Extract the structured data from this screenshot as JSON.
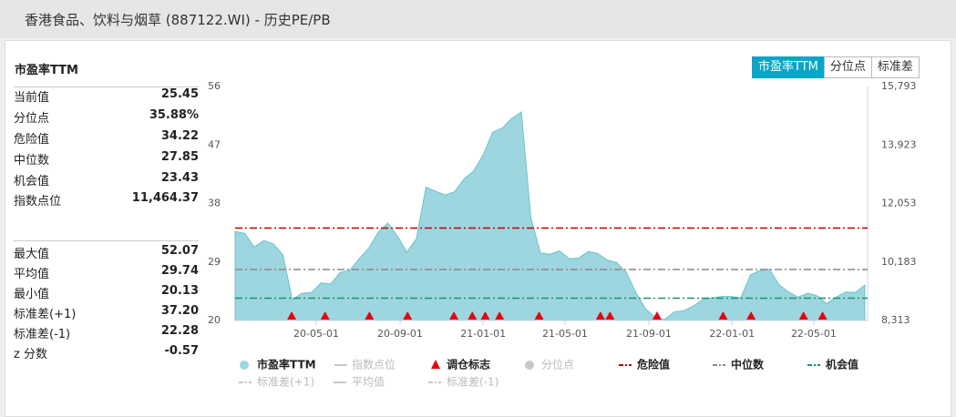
{
  "header": {
    "title": "香港食品、饮料与烟草 (887122.WI) - 历史PE/PB"
  },
  "panel": {
    "title": "市盈率TTM",
    "tabs": [
      "市盈率TTM",
      "分位点",
      "标准差"
    ],
    "active_tab": 0
  },
  "stats": {
    "groups": [
      [
        [
          "当前值",
          "25.45"
        ],
        [
          "分位点",
          "35.88%"
        ],
        [
          "危险值",
          "34.22"
        ],
        [
          "中位数",
          "27.85"
        ],
        [
          "机会值",
          "23.43"
        ],
        [
          "指数点位",
          "11,464.37"
        ]
      ],
      [
        [
          "最大值",
          "52.07"
        ],
        [
          "平均值",
          "29.74"
        ],
        [
          "最小值",
          "20.13"
        ],
        [
          "标准差(+1)",
          "37.20"
        ],
        [
          "标准差(-1)",
          "22.28"
        ],
        [
          "z 分数",
          "-0.57"
        ]
      ]
    ]
  },
  "chart_data": {
    "type": "area",
    "x": [
      "20-01-03",
      "20-01-17",
      "20-01-31",
      "20-02-14",
      "20-02-28",
      "20-03-13",
      "20-03-27",
      "20-04-10",
      "20-04-24",
      "20-05-08",
      "20-05-22",
      "20-06-05",
      "20-06-19",
      "20-07-03",
      "20-07-17",
      "20-07-31",
      "20-08-14",
      "20-08-28",
      "20-09-11",
      "20-09-25",
      "20-10-09",
      "20-10-23",
      "20-11-06",
      "20-11-20",
      "20-12-04",
      "20-12-18",
      "21-01-01",
      "21-01-15",
      "21-01-29",
      "21-02-12",
      "21-02-26",
      "21-03-12",
      "21-03-26",
      "21-04-09",
      "21-04-23",
      "21-05-07",
      "21-05-21",
      "21-06-04",
      "21-06-18",
      "21-07-02",
      "21-07-16",
      "21-07-30",
      "21-08-13",
      "21-08-27",
      "21-09-10",
      "21-09-24",
      "21-10-08",
      "21-10-22",
      "21-11-05",
      "21-11-19",
      "21-12-03",
      "21-12-17",
      "21-12-31",
      "22-01-14",
      "22-01-28",
      "22-02-11",
      "22-02-25",
      "22-03-11",
      "22-03-25",
      "22-04-08",
      "22-04-22",
      "22-05-06",
      "22-05-20",
      "22-06-03",
      "22-06-17",
      "22-07-01",
      "22-07-15"
    ],
    "series": [
      {
        "name": "市盈率TTM",
        "color": "#9dd6de",
        "values": [
          33.7,
          33.4,
          31.3,
          32.3,
          31.8,
          30.1,
          23.2,
          24.2,
          24.3,
          25.8,
          25.6,
          27.4,
          27.7,
          29.5,
          31.1,
          33.6,
          35.0,
          33.0,
          30.5,
          32.6,
          40.5,
          39.9,
          39.3,
          39.8,
          41.8,
          43.0,
          45.5,
          49.0,
          49.6,
          51.1,
          52.07,
          35.8,
          30.4,
          30.2,
          30.7,
          29.5,
          29.6,
          30.6,
          30.3,
          29.3,
          28.9,
          27.4,
          24.3,
          21.8,
          20.5,
          20.13,
          21.3,
          21.5,
          22.2,
          23.2,
          23.5,
          23.7,
          23.7,
          23.5,
          27.0,
          27.7,
          27.9,
          25.5,
          24.4,
          23.6,
          24.2,
          23.8,
          22.6,
          23.6,
          24.4,
          24.3,
          25.45
        ]
      }
    ],
    "lines": [
      {
        "name": "危险值",
        "value": 34.22,
        "color": "#c00000"
      },
      {
        "name": "中位数",
        "value": 27.85,
        "color": "#888888"
      },
      {
        "name": "机会值",
        "value": 23.43,
        "color": "#16976a"
      }
    ],
    "markers": {
      "name": "调仓标志",
      "color": "#e60012",
      "x": [
        "20-03-26",
        "20-05-14",
        "20-07-18",
        "20-09-12",
        "20-11-19",
        "20-12-16",
        "21-01-04",
        "21-01-25",
        "21-03-24",
        "21-06-22",
        "21-07-06",
        "21-09-13",
        "21-12-19",
        "22-01-29",
        "22-04-16",
        "22-05-14"
      ]
    },
    "legend_disabled": [
      "指数点位",
      "分位点",
      "标准差(+1)",
      "平均值",
      "标准差(-1)"
    ],
    "xlim": [
      "20-01-03",
      "22-07-19"
    ],
    "xticks": [
      "20-05-01",
      "20-09-01",
      "21-01-01",
      "21-05-01",
      "21-09-01",
      "22-01-01",
      "22-05-01"
    ],
    "ylim": [
      20,
      56
    ],
    "yticks": [
      20,
      29,
      38,
      47,
      56
    ],
    "y2lim": [
      8313,
      15793
    ],
    "y2ticks": [
      {
        "value": 8313,
        "label": "8,313"
      },
      {
        "value": 10183,
        "label": "10,183"
      },
      {
        "value": 12053,
        "label": "12,053"
      },
      {
        "value": 13923,
        "label": "13,923"
      },
      {
        "value": 15793,
        "label": "15,793"
      }
    ]
  }
}
